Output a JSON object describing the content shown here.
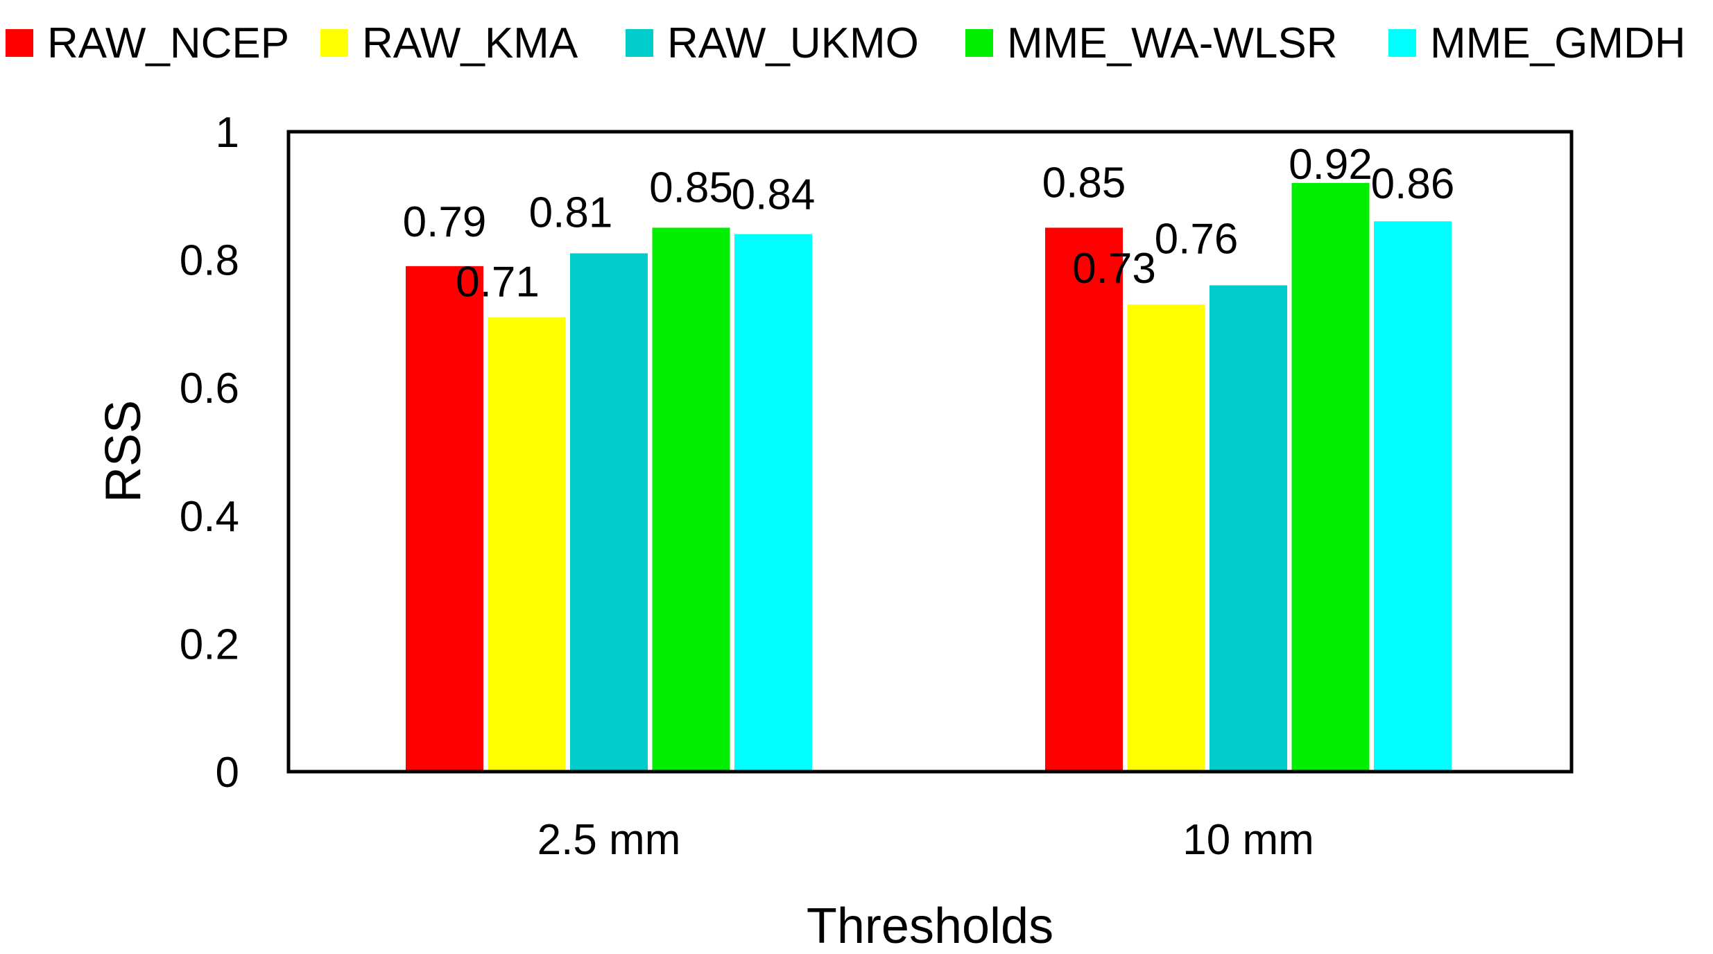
{
  "chart_data": {
    "type": "bar",
    "title": "",
    "xlabel": "Thresholds",
    "ylabel": "RSS",
    "categories": [
      "2.5 mm",
      "10 mm"
    ],
    "ylim": [
      0,
      1
    ],
    "yticks": [
      0,
      0.2,
      0.4,
      0.6,
      0.8,
      1
    ],
    "ytick_labels": [
      "0",
      "0.2",
      "0.4",
      "0.6",
      "0.8",
      "1"
    ],
    "grid": false,
    "legend_position": "top",
    "series": [
      {
        "name": "RAW_NCEP",
        "color": "#ff0000",
        "values": [
          0.79,
          0.85
        ],
        "labels": [
          "0.79",
          "0.85"
        ]
      },
      {
        "name": "RAW_KMA",
        "color": "#ffff00",
        "values": [
          0.71,
          0.73
        ],
        "labels": [
          "0.71",
          "0.73"
        ]
      },
      {
        "name": "RAW_UKMO",
        "color": "#00cccc",
        "values": [
          0.81,
          0.76
        ],
        "labels": [
          "0.81",
          "0.76"
        ]
      },
      {
        "name": "MME_WA-WLSR",
        "color": "#00ee00",
        "values": [
          0.85,
          0.92
        ],
        "labels": [
          "0.85",
          "0.92"
        ]
      },
      {
        "name": "MME_GMDH",
        "color": "#00ffff",
        "values": [
          0.84,
          0.86
        ],
        "labels": [
          "0.84",
          "0.86"
        ]
      }
    ]
  }
}
